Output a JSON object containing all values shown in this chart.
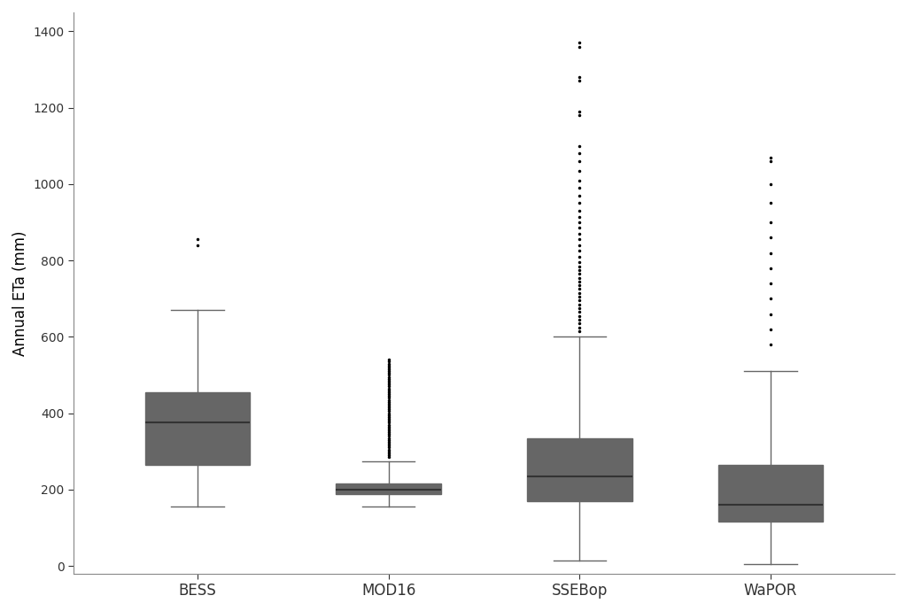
{
  "labels": [
    "BESS",
    "MOD16",
    "SSEBop",
    "WaPOR"
  ],
  "colors": [
    "#5B0F8C",
    "#C2185B",
    "#E07070",
    "#E8A020"
  ],
  "ylabel": "Annual ETa (mm)",
  "ylim": [
    -20,
    1450
  ],
  "yticks": [
    0,
    200,
    400,
    600,
    800,
    1000,
    1200,
    1400
  ],
  "dpi": 100,
  "background_color": "#ffffff",
  "box_stats": {
    "BESS": {
      "whislo": 155,
      "q1": 265,
      "med": 375,
      "q3": 455,
      "whishi": 670,
      "fliers": [
        840,
        855
      ]
    },
    "MOD16": {
      "whislo": 155,
      "q1": 188,
      "med": 200,
      "q3": 215,
      "whishi": 275,
      "fliers": [
        285,
        290,
        295,
        300,
        305,
        310,
        315,
        320,
        325,
        330,
        335,
        340,
        345,
        350,
        355,
        360,
        365,
        370,
        375,
        380,
        385,
        390,
        395,
        400,
        405,
        410,
        415,
        420,
        425,
        430,
        435,
        440,
        445,
        450,
        455,
        460,
        465,
        470,
        475,
        480,
        485,
        490,
        495,
        500,
        505,
        510,
        515,
        520,
        525,
        530,
        535,
        540
      ]
    },
    "SSEBop": {
      "whislo": 15,
      "q1": 170,
      "med": 235,
      "q3": 335,
      "whishi": 600,
      "fliers": [
        615,
        625,
        635,
        645,
        655,
        665,
        675,
        685,
        695,
        705,
        715,
        725,
        735,
        745,
        755,
        765,
        775,
        785,
        795,
        810,
        825,
        840,
        855,
        870,
        885,
        900,
        915,
        930,
        950,
        970,
        990,
        1010,
        1035,
        1060,
        1080,
        1100,
        1180,
        1190,
        1270,
        1280,
        1360,
        1370
      ]
    },
    "WaPOR": {
      "whislo": 5,
      "q1": 115,
      "med": 160,
      "q3": 265,
      "whishi": 510,
      "fliers": [
        580,
        620,
        660,
        700,
        740,
        780,
        820,
        860,
        900,
        950,
        1000,
        1060,
        1070
      ]
    }
  }
}
